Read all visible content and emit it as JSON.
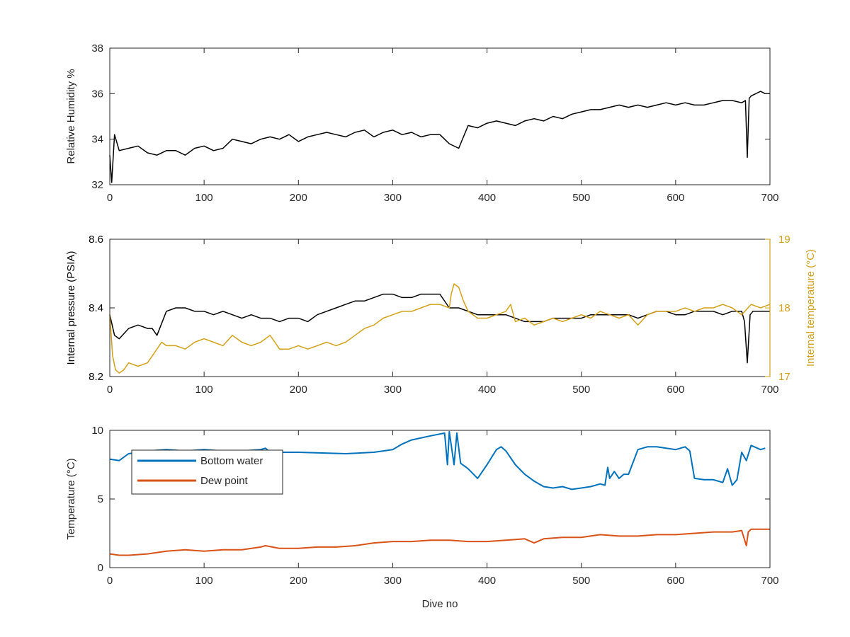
{
  "chart_data": [
    {
      "type": "line",
      "title": "",
      "xlabel": "",
      "ylabel": "Relative Humidity %",
      "xlim": [
        0,
        700
      ],
      "ylim": [
        32,
        38
      ],
      "xticks": [
        0,
        100,
        200,
        300,
        400,
        500,
        600,
        700
      ],
      "yticks": [
        32,
        34,
        36,
        38
      ],
      "grid": false,
      "series": [
        {
          "color": "#000000",
          "x": [
            0,
            2,
            5,
            10,
            20,
            30,
            40,
            50,
            60,
            70,
            80,
            90,
            100,
            110,
            120,
            130,
            140,
            150,
            160,
            170,
            180,
            190,
            200,
            210,
            220,
            230,
            240,
            250,
            260,
            270,
            280,
            290,
            300,
            310,
            320,
            330,
            340,
            350,
            360,
            370,
            380,
            390,
            400,
            410,
            420,
            430,
            440,
            450,
            460,
            470,
            480,
            490,
            500,
            510,
            520,
            530,
            540,
            550,
            560,
            570,
            580,
            590,
            600,
            610,
            620,
            630,
            640,
            650,
            660,
            670,
            674,
            676,
            678,
            680,
            690,
            695,
            700
          ],
          "values": [
            33.3,
            32.1,
            34.2,
            33.5,
            33.6,
            33.7,
            33.4,
            33.3,
            33.5,
            33.5,
            33.3,
            33.6,
            33.7,
            33.5,
            33.6,
            34.0,
            33.9,
            33.8,
            34.0,
            34.1,
            34.0,
            34.2,
            33.9,
            34.1,
            34.2,
            34.3,
            34.2,
            34.1,
            34.3,
            34.4,
            34.1,
            34.3,
            34.4,
            34.2,
            34.3,
            34.1,
            34.2,
            34.2,
            33.8,
            33.6,
            34.6,
            34.5,
            34.7,
            34.8,
            34.7,
            34.6,
            34.8,
            34.9,
            34.8,
            35.0,
            34.9,
            35.1,
            35.2,
            35.3,
            35.3,
            35.4,
            35.5,
            35.4,
            35.5,
            35.4,
            35.5,
            35.6,
            35.5,
            35.6,
            35.5,
            35.5,
            35.6,
            35.7,
            35.7,
            35.6,
            35.7,
            33.2,
            35.8,
            35.9,
            36.1,
            36.0,
            36.0
          ]
        }
      ]
    },
    {
      "type": "line",
      "title": "",
      "xlabel": "",
      "ylabel": "Internal pressure (PSIA)",
      "ylabel_right": "Internal temperature (°C)",
      "xlim": [
        0,
        700
      ],
      "ylim": [
        8.2,
        8.6
      ],
      "ylim_right": [
        17,
        19
      ],
      "xticks": [
        0,
        100,
        200,
        300,
        400,
        500,
        600,
        700
      ],
      "yticks": [
        8.2,
        8.4,
        8.6
      ],
      "yticks_right": [
        17,
        18,
        19
      ],
      "grid": false,
      "series": [
        {
          "axis": "left",
          "color": "#000000",
          "x": [
            0,
            5,
            10,
            20,
            30,
            40,
            45,
            50,
            60,
            70,
            80,
            90,
            100,
            110,
            120,
            130,
            140,
            150,
            160,
            170,
            180,
            190,
            200,
            210,
            220,
            230,
            240,
            250,
            260,
            270,
            280,
            290,
            300,
            310,
            320,
            330,
            340,
            350,
            360,
            370,
            380,
            390,
            400,
            410,
            420,
            430,
            440,
            450,
            460,
            470,
            480,
            490,
            500,
            510,
            520,
            530,
            540,
            550,
            560,
            570,
            580,
            590,
            600,
            610,
            620,
            630,
            640,
            650,
            660,
            670,
            673,
            676,
            679,
            682,
            690,
            700
          ],
          "values": [
            8.38,
            8.32,
            8.31,
            8.34,
            8.35,
            8.34,
            8.34,
            8.32,
            8.39,
            8.4,
            8.4,
            8.39,
            8.39,
            8.38,
            8.39,
            8.38,
            8.37,
            8.38,
            8.37,
            8.37,
            8.36,
            8.37,
            8.37,
            8.36,
            8.38,
            8.39,
            8.4,
            8.41,
            8.42,
            8.42,
            8.43,
            8.44,
            8.44,
            8.43,
            8.43,
            8.44,
            8.44,
            8.44,
            8.4,
            8.4,
            8.39,
            8.38,
            8.38,
            8.38,
            8.38,
            8.37,
            8.36,
            8.36,
            8.36,
            8.37,
            8.37,
            8.37,
            8.37,
            8.38,
            8.38,
            8.38,
            8.38,
            8.38,
            8.37,
            8.38,
            8.39,
            8.39,
            8.38,
            8.38,
            8.39,
            8.39,
            8.39,
            8.38,
            8.39,
            8.39,
            8.36,
            8.24,
            8.38,
            8.39,
            8.39,
            8.39
          ]
        },
        {
          "axis": "right",
          "color": "#D4A017",
          "x": [
            0,
            3,
            6,
            10,
            15,
            20,
            30,
            40,
            50,
            55,
            60,
            70,
            80,
            90,
            100,
            110,
            120,
            130,
            140,
            150,
            160,
            170,
            180,
            190,
            200,
            210,
            220,
            230,
            240,
            250,
            260,
            270,
            280,
            290,
            300,
            310,
            320,
            330,
            340,
            350,
            360,
            362,
            365,
            370,
            375,
            380,
            390,
            400,
            410,
            420,
            425,
            430,
            440,
            450,
            460,
            470,
            480,
            490,
            500,
            510,
            520,
            530,
            540,
            550,
            560,
            570,
            580,
            590,
            600,
            610,
            620,
            630,
            640,
            650,
            660,
            670,
            680,
            690,
            700
          ],
          "values": [
            17.9,
            17.3,
            17.1,
            17.05,
            17.1,
            17.2,
            17.15,
            17.2,
            17.4,
            17.5,
            17.45,
            17.45,
            17.4,
            17.5,
            17.55,
            17.5,
            17.45,
            17.6,
            17.5,
            17.45,
            17.5,
            17.6,
            17.4,
            17.4,
            17.45,
            17.4,
            17.45,
            17.5,
            17.45,
            17.5,
            17.6,
            17.7,
            17.75,
            17.85,
            17.9,
            17.95,
            17.95,
            18.0,
            18.05,
            18.05,
            18.0,
            18.2,
            18.35,
            18.3,
            18.1,
            17.95,
            17.85,
            17.85,
            17.9,
            17.95,
            18.05,
            17.8,
            17.85,
            17.75,
            17.8,
            17.85,
            17.8,
            17.85,
            17.9,
            17.85,
            17.95,
            17.9,
            17.85,
            17.9,
            17.75,
            17.9,
            17.95,
            17.95,
            17.95,
            18.0,
            17.95,
            18.0,
            18.0,
            18.05,
            18.0,
            17.9,
            18.05,
            18.0,
            18.05
          ]
        }
      ]
    },
    {
      "type": "line",
      "title": "",
      "xlabel": "Dive no",
      "ylabel": "Temperature (°C)",
      "xlim": [
        0,
        700
      ],
      "ylim": [
        0,
        10
      ],
      "xticks": [
        0,
        100,
        200,
        300,
        400,
        500,
        600,
        700
      ],
      "yticks": [
        0,
        5,
        10
      ],
      "grid": false,
      "legend_position": "top-left",
      "series": [
        {
          "name": "Bottom water",
          "color": "#0072BD",
          "x": [
            0,
            10,
            20,
            40,
            60,
            80,
            100,
            120,
            140,
            160,
            165,
            170,
            200,
            250,
            280,
            300,
            310,
            320,
            340,
            355,
            358,
            360,
            365,
            368,
            372,
            380,
            390,
            400,
            410,
            415,
            420,
            430,
            440,
            450,
            460,
            470,
            480,
            490,
            500,
            510,
            520,
            525,
            528,
            530,
            535,
            540,
            545,
            550,
            560,
            570,
            580,
            590,
            600,
            610,
            615,
            620,
            630,
            640,
            650,
            655,
            660,
            665,
            670,
            675,
            680,
            690,
            695
          ],
          "values": [
            7.9,
            7.8,
            8.3,
            8.5,
            8.6,
            8.5,
            8.6,
            8.5,
            8.5,
            8.6,
            8.7,
            8.4,
            8.4,
            8.3,
            8.4,
            8.6,
            9.0,
            9.3,
            9.6,
            9.8,
            7.5,
            9.9,
            7.5,
            9.8,
            7.6,
            7.2,
            6.5,
            7.5,
            8.6,
            8.8,
            8.5,
            7.5,
            6.8,
            6.3,
            5.9,
            5.8,
            5.9,
            5.7,
            5.8,
            5.9,
            6.1,
            6.0,
            7.3,
            6.5,
            7.0,
            6.5,
            6.8,
            6.8,
            8.6,
            8.8,
            8.8,
            8.7,
            8.6,
            8.8,
            8.5,
            6.5,
            6.4,
            6.4,
            6.2,
            7.2,
            6.0,
            6.4,
            8.4,
            7.8,
            8.9,
            8.6,
            8.7
          ]
        },
        {
          "name": "Dew point",
          "color": "#D95319",
          "x": [
            0,
            10,
            20,
            40,
            60,
            80,
            100,
            120,
            140,
            160,
            165,
            180,
            200,
            220,
            240,
            260,
            280,
            300,
            320,
            340,
            360,
            380,
            400,
            420,
            440,
            450,
            460,
            480,
            500,
            520,
            540,
            560,
            580,
            600,
            620,
            640,
            660,
            670,
            675,
            677,
            680,
            690,
            700
          ],
          "values": [
            1.0,
            0.9,
            0.9,
            1.0,
            1.2,
            1.3,
            1.2,
            1.3,
            1.3,
            1.5,
            1.6,
            1.4,
            1.4,
            1.5,
            1.5,
            1.6,
            1.8,
            1.9,
            1.9,
            2.0,
            2.0,
            1.9,
            1.9,
            2.0,
            2.1,
            1.8,
            2.1,
            2.2,
            2.2,
            2.4,
            2.3,
            2.3,
            2.4,
            2.4,
            2.5,
            2.6,
            2.6,
            2.7,
            1.6,
            2.6,
            2.8,
            2.8,
            2.8
          ]
        }
      ]
    }
  ]
}
